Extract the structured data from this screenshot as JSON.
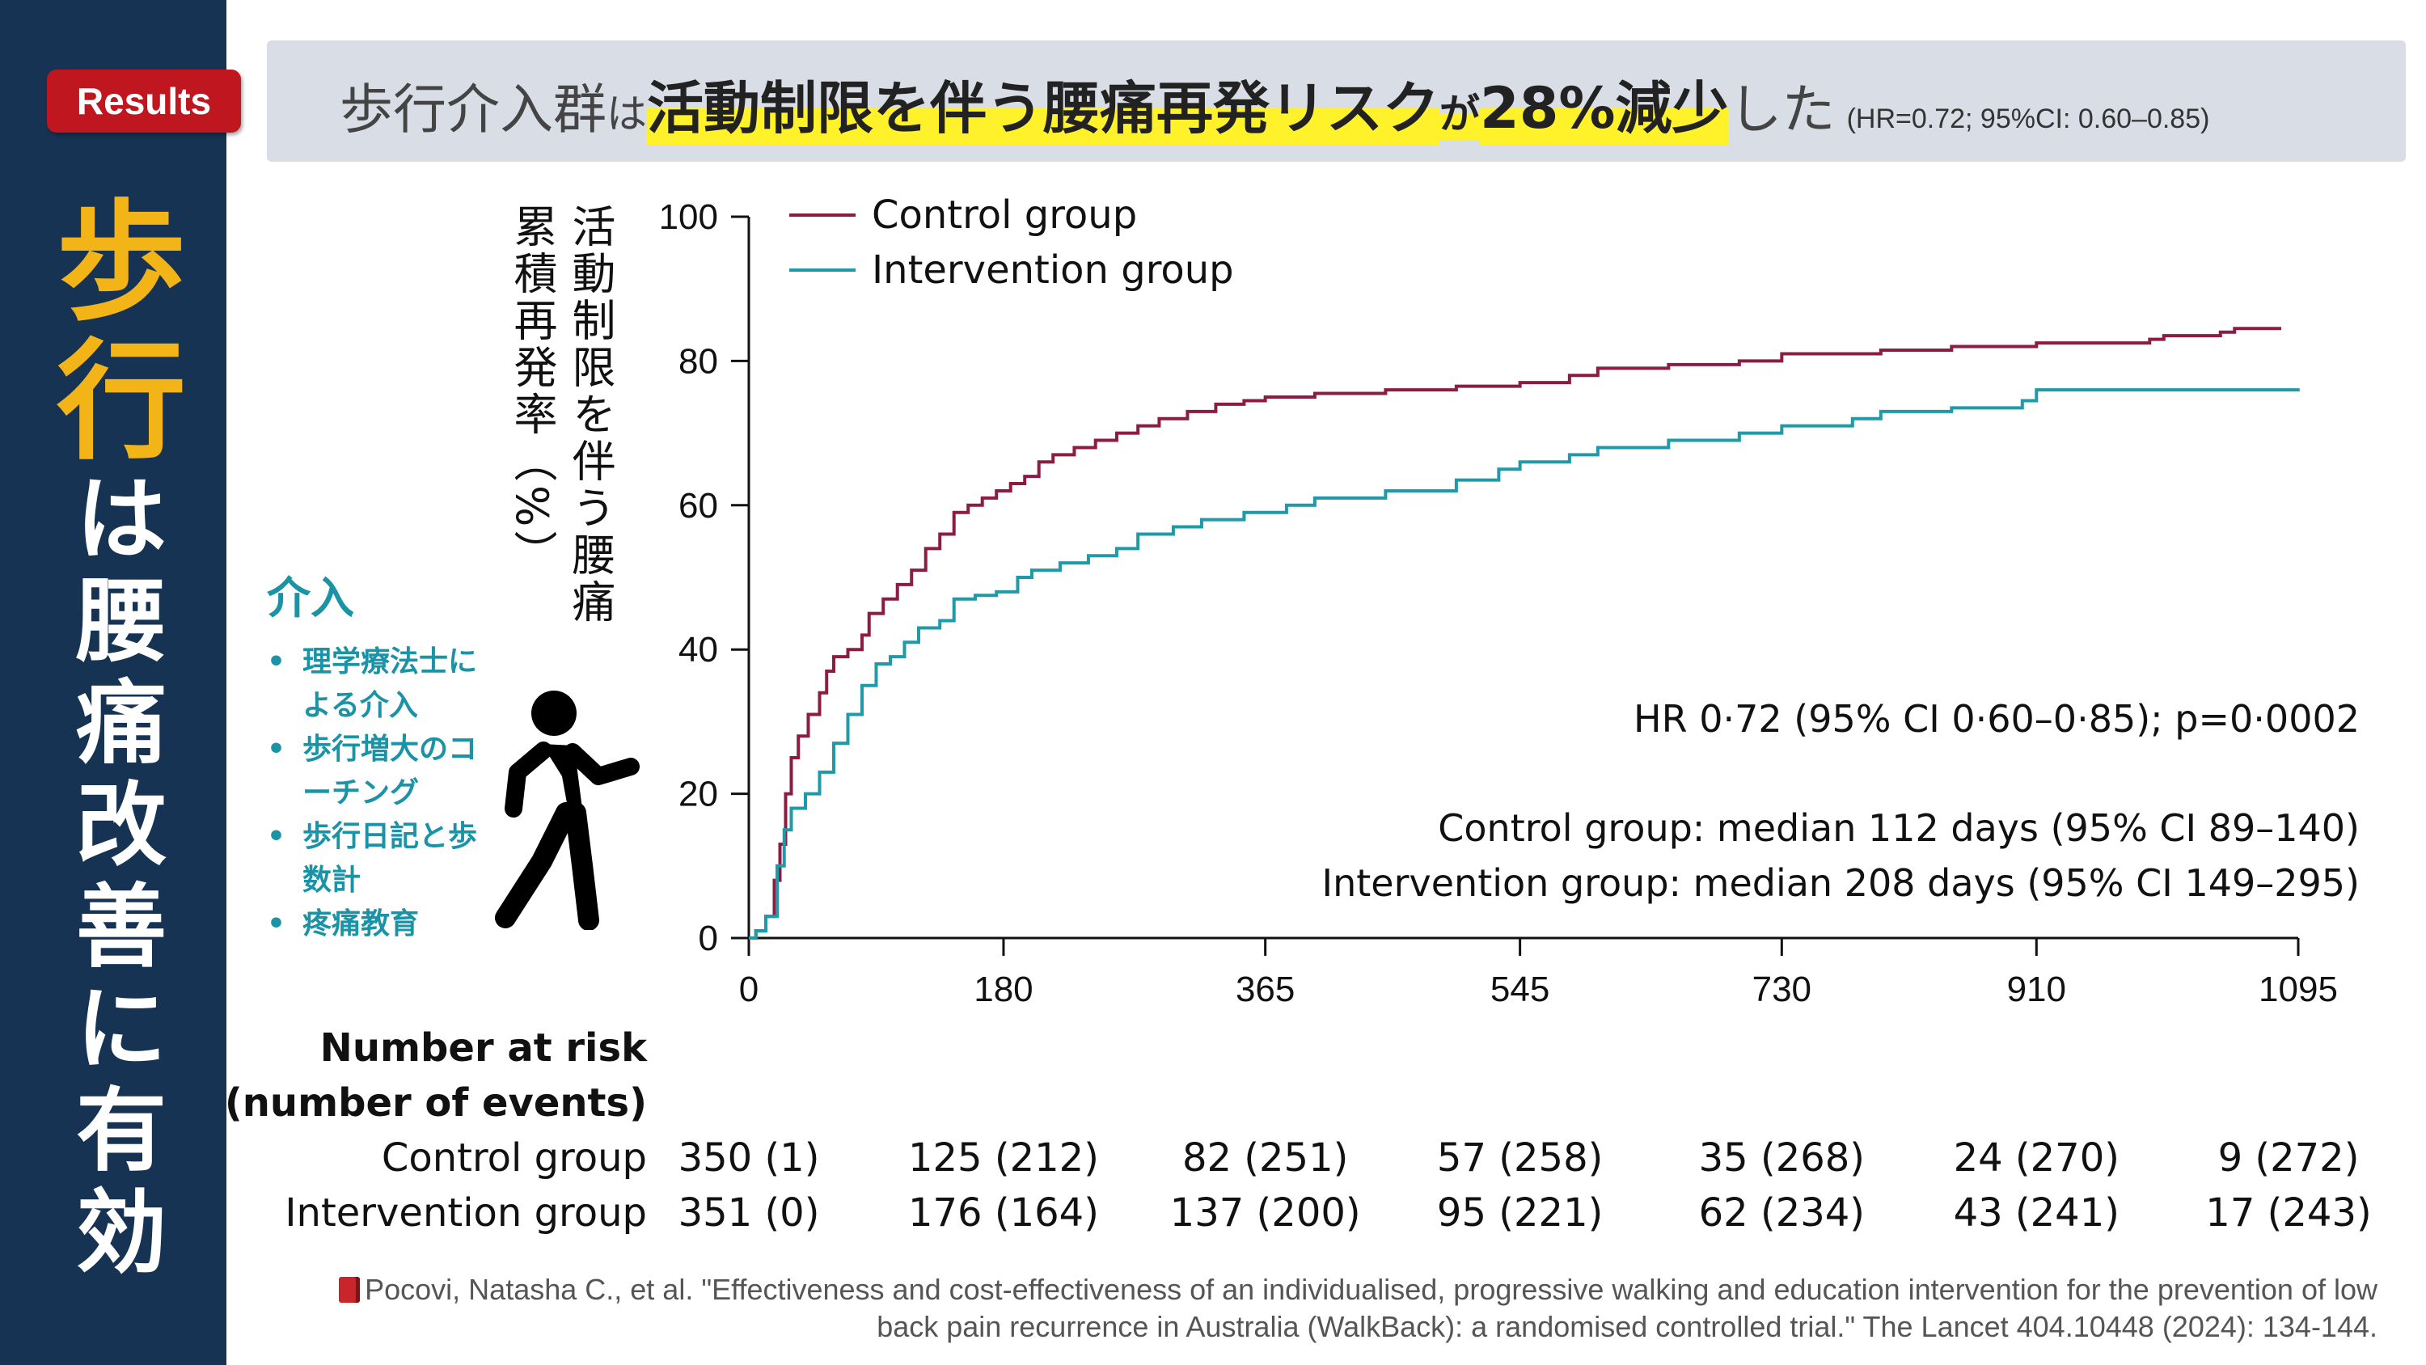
{
  "sidebar": {
    "badge": "Results",
    "vertical_title": [
      "歩",
      "行",
      "は",
      "腰",
      "痛",
      "改",
      "善",
      "に",
      "有",
      "効"
    ]
  },
  "headline": {
    "prefix": "歩行介入群",
    "particle1": "は",
    "highlight_main": "活動制限を伴う腰痛再発リスク",
    "highlight_particle": "が",
    "highlight_value": "28%減少",
    "suffix": "した",
    "paren": "(HR=0.72; 95%CI: 0.60–0.85)"
  },
  "y_axis_label": {
    "line1": "活動制限を伴う腰痛",
    "line2": "累積再発率（%）"
  },
  "intervention": {
    "title": "介入",
    "items": [
      "理学療法士による介入",
      "歩行増大のコーチング",
      "歩行日記と歩数計",
      "疼痛教育"
    ]
  },
  "icons": {
    "walker": "walking-person-icon",
    "book": "book-icon"
  },
  "colors": {
    "control": "#8c1d40",
    "intervention": "#1f9aa8",
    "sidebar": "#163354",
    "accent": "#f2b417",
    "badge": "#c0161f",
    "highlight": "#fff22b"
  },
  "chart_data": {
    "type": "line",
    "xlim": [
      0,
      1095
    ],
    "ylim": [
      0,
      100
    ],
    "x_ticks": [
      0,
      180,
      365,
      545,
      730,
      910,
      1095
    ],
    "y_ticks": [
      0,
      20,
      40,
      60,
      80,
      100
    ],
    "legend_position": "top-left",
    "series": [
      {
        "name": "Control group",
        "color": "#8c1d40",
        "points": [
          [
            0,
            0
          ],
          [
            5,
            1
          ],
          [
            12,
            3
          ],
          [
            18,
            8
          ],
          [
            22,
            13
          ],
          [
            26,
            20
          ],
          [
            30,
            25
          ],
          [
            35,
            28
          ],
          [
            42,
            31
          ],
          [
            50,
            34
          ],
          [
            55,
            37
          ],
          [
            60,
            39
          ],
          [
            70,
            40
          ],
          [
            80,
            42
          ],
          [
            85,
            45
          ],
          [
            95,
            47
          ],
          [
            105,
            49
          ],
          [
            115,
            51
          ],
          [
            125,
            54
          ],
          [
            135,
            56
          ],
          [
            145,
            59
          ],
          [
            155,
            60
          ],
          [
            165,
            61
          ],
          [
            175,
            62
          ],
          [
            185,
            63
          ],
          [
            195,
            64
          ],
          [
            205,
            66
          ],
          [
            215,
            67
          ],
          [
            230,
            68
          ],
          [
            245,
            69
          ],
          [
            260,
            70
          ],
          [
            275,
            71
          ],
          [
            290,
            72
          ],
          [
            310,
            73
          ],
          [
            330,
            74
          ],
          [
            350,
            74.5
          ],
          [
            365,
            75
          ],
          [
            400,
            75.5
          ],
          [
            450,
            76
          ],
          [
            500,
            76.5
          ],
          [
            545,
            77
          ],
          [
            580,
            78
          ],
          [
            600,
            79
          ],
          [
            650,
            79.5
          ],
          [
            700,
            80
          ],
          [
            730,
            81
          ],
          [
            800,
            81.5
          ],
          [
            850,
            82
          ],
          [
            910,
            82.5
          ],
          [
            990,
            83
          ],
          [
            1000,
            83.5
          ],
          [
            1040,
            84
          ],
          [
            1050,
            84.5
          ],
          [
            1083,
            84.5
          ]
        ]
      },
      {
        "name": "Intervention group",
        "color": "#1f9aa8",
        "points": [
          [
            0,
            0
          ],
          [
            5,
            1
          ],
          [
            12,
            3
          ],
          [
            20,
            10
          ],
          [
            25,
            15
          ],
          [
            30,
            18
          ],
          [
            40,
            20
          ],
          [
            50,
            23
          ],
          [
            60,
            27
          ],
          [
            70,
            31
          ],
          [
            80,
            35
          ],
          [
            90,
            38
          ],
          [
            100,
            39
          ],
          [
            110,
            41
          ],
          [
            120,
            43
          ],
          [
            135,
            44
          ],
          [
            145,
            47
          ],
          [
            160,
            47.5
          ],
          [
            175,
            48
          ],
          [
            190,
            50
          ],
          [
            200,
            51
          ],
          [
            220,
            52
          ],
          [
            240,
            53
          ],
          [
            260,
            54
          ],
          [
            275,
            56
          ],
          [
            300,
            57
          ],
          [
            320,
            58
          ],
          [
            350,
            59
          ],
          [
            380,
            60
          ],
          [
            400,
            61
          ],
          [
            450,
            62
          ],
          [
            500,
            63.5
          ],
          [
            530,
            65
          ],
          [
            545,
            66
          ],
          [
            580,
            67
          ],
          [
            600,
            68
          ],
          [
            650,
            69
          ],
          [
            700,
            70
          ],
          [
            730,
            71
          ],
          [
            780,
            72
          ],
          [
            800,
            73
          ],
          [
            850,
            73.5
          ],
          [
            900,
            74.5
          ],
          [
            910,
            76
          ],
          [
            1000,
            76
          ],
          [
            1096,
            76
          ]
        ]
      }
    ],
    "annotations": [
      "HR 0·72 (95% CI 0·60–0·85); p=0·0002",
      "Control group: median 112 days (95% CI 89–140)",
      "Intervention group: median 208 days (95% CI 149–295)"
    ]
  },
  "risk_table": {
    "header_line1": "Number at risk",
    "header_line2": "(number of events)",
    "rows": [
      {
        "label": "Control group",
        "cells": [
          "350 (1)",
          "125 (212)",
          "82 (251)",
          "57 (258)",
          "35 (268)",
          "24 (270)",
          "9 (272)"
        ]
      },
      {
        "label": "Intervention group",
        "cells": [
          "351 (0)",
          "176 (164)",
          "137 (200)",
          "95 (221)",
          "62 (234)",
          "43 (241)",
          "17 (243)"
        ]
      }
    ]
  },
  "citation": {
    "text": "Pocovi, Natasha C., et al. \"Effectiveness and cost-effectiveness of an individualised, progressive walking and education intervention for the prevention of low back pain recurrence in Australia (WalkBack): a randomised controlled trial.\" The Lancet 404.10448 (2024): 134-144."
  }
}
